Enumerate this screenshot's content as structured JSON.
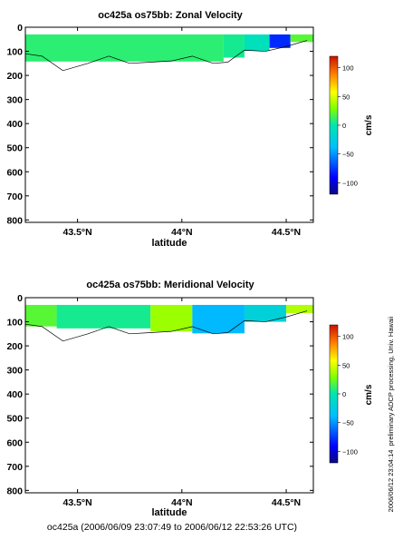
{
  "chart_data": [
    {
      "type": "heatmap",
      "title": "oc425a os75bb: Zonal Velocity",
      "xlabel": "latitude",
      "ylabel": "",
      "xlim": [
        43.25,
        44.63
      ],
      "ylim": [
        810,
        0
      ],
      "x_ticks": [
        43.5,
        44.0,
        44.5
      ],
      "x_tick_labels": [
        "43.5°N",
        "44°N",
        "44.5°N"
      ],
      "y_ticks": [
        0,
        100,
        200,
        300,
        400,
        500,
        600,
        700,
        800
      ],
      "y_tick_labels": [
        "0",
        "100",
        "200",
        "300",
        "400",
        "500",
        "600",
        "700",
        "800"
      ],
      "colorbar": {
        "label": "cm/s",
        "range": [
          -120,
          120
        ],
        "ticks": [
          100,
          50,
          0,
          -50,
          -100
        ],
        "tick_labels": [
          "100",
          "50",
          "0",
          "−50",
          "−100"
        ]
      },
      "data_depth_range_m": [
        30,
        180
      ],
      "profile_bottom_depth_m": [
        {
          "lat": 43.25,
          "depth": 110
        },
        {
          "lat": 43.33,
          "depth": 120
        },
        {
          "lat": 43.43,
          "depth": 180
        },
        {
          "lat": 43.55,
          "depth": 150
        },
        {
          "lat": 43.65,
          "depth": 120
        },
        {
          "lat": 43.75,
          "depth": 150
        },
        {
          "lat": 43.85,
          "depth": 145
        },
        {
          "lat": 43.95,
          "depth": 140
        },
        {
          "lat": 44.05,
          "depth": 120
        },
        {
          "lat": 44.15,
          "depth": 150
        },
        {
          "lat": 44.22,
          "depth": 145
        },
        {
          "lat": 44.3,
          "depth": 95
        },
        {
          "lat": 44.4,
          "depth": 100
        },
        {
          "lat": 44.5,
          "depth": 80
        },
        {
          "lat": 44.6,
          "depth": 55
        }
      ],
      "velocity_field_cms": [
        {
          "lat_range": [
            43.25,
            44.2
          ],
          "value": 10
        },
        {
          "lat_range": [
            44.2,
            44.3
          ],
          "value": 5
        },
        {
          "lat_range": [
            44.3,
            44.42
          ],
          "value": -5
        },
        {
          "lat_range": [
            44.42,
            44.52
          ],
          "value": -80
        },
        {
          "lat_range": [
            44.52,
            44.63
          ],
          "value": 20
        }
      ]
    },
    {
      "type": "heatmap",
      "title": "oc425a os75bb: Meridional Velocity",
      "xlabel": "latitude",
      "ylabel": "",
      "xlim": [
        43.25,
        44.63
      ],
      "ylim": [
        810,
        0
      ],
      "x_ticks": [
        43.5,
        44.0,
        44.5
      ],
      "x_tick_labels": [
        "43.5°N",
        "44°N",
        "44.5°N"
      ],
      "y_ticks": [
        0,
        100,
        200,
        300,
        400,
        500,
        600,
        700,
        800
      ],
      "y_tick_labels": [
        "0",
        "100",
        "200",
        "300",
        "400",
        "500",
        "600",
        "700",
        "800"
      ],
      "colorbar": {
        "label": "cm/s",
        "range": [
          -120,
          120
        ],
        "ticks": [
          100,
          50,
          0,
          -50,
          -100
        ],
        "tick_labels": [
          "100",
          "50",
          "0",
          "−50",
          "−100"
        ]
      },
      "data_depth_range_m": [
        30,
        180
      ],
      "velocity_field_cms": [
        {
          "lat_range": [
            43.25,
            43.4
          ],
          "value": 20
        },
        {
          "lat_range": [
            43.4,
            43.85
          ],
          "value": 5
        },
        {
          "lat_range": [
            43.85,
            44.05
          ],
          "value": 35
        },
        {
          "lat_range": [
            44.05,
            44.3
          ],
          "value": -40
        },
        {
          "lat_range": [
            44.3,
            44.5
          ],
          "value": -20
        },
        {
          "lat_range": [
            44.5,
            44.63
          ],
          "value": 40
        }
      ]
    }
  ],
  "footer": "oc425a (2006/06/09 23:07:49 to 2006/06/12 22:53:26 UTC)",
  "side_note": "preliminary ADCP processing,  Univ. Hawaii",
  "side_date": "2006/06/12 23:04:14"
}
